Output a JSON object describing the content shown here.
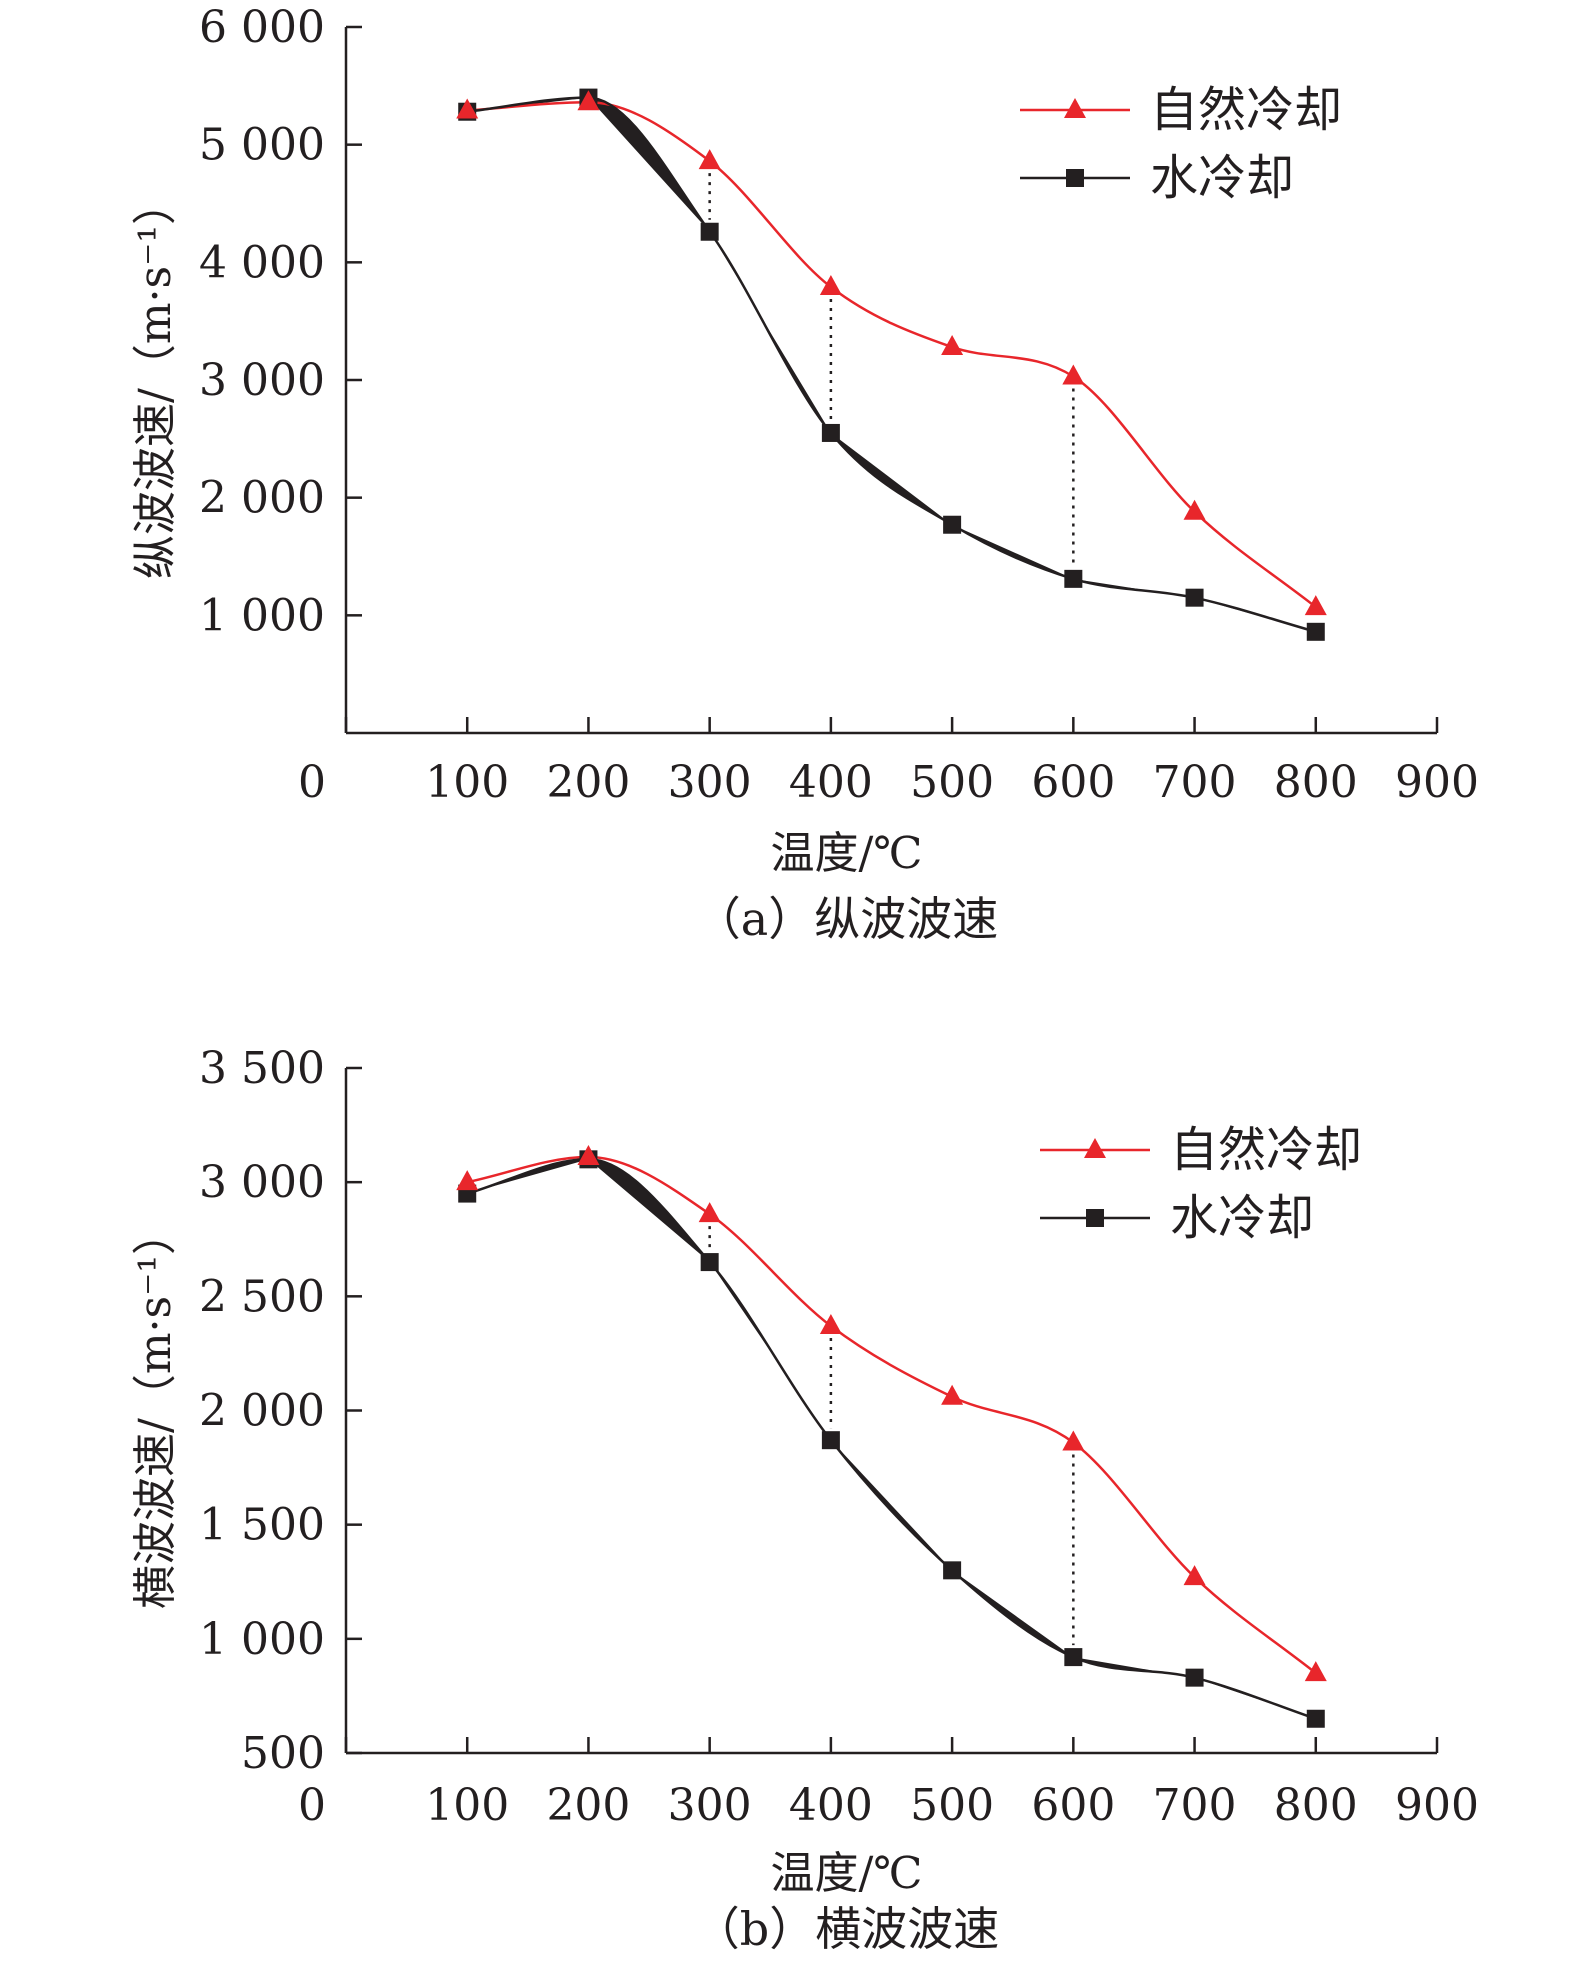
{
  "figure": {
    "colors": {
      "natural": "#e8262b",
      "water": "#231f20",
      "axis": "#231f20"
    }
  },
  "chart_data": [
    {
      "type": "line",
      "caption": "（a）纵波波速",
      "xlabel": "温度/℃",
      "ylabel": "纵波波速/（m·s⁻¹）",
      "xlim": [
        0,
        900
      ],
      "ylim": [
        0,
        6000
      ],
      "xticks": [
        0,
        100,
        200,
        300,
        400,
        500,
        600,
        700,
        800,
        900
      ],
      "xtick_labels": [
        "0",
        "100",
        "200",
        "300",
        "400",
        "500",
        "600",
        "700",
        "800",
        "900"
      ],
      "yticks": [
        1000,
        2000,
        3000,
        4000,
        5000,
        6000
      ],
      "ytick_labels": [
        "1 000",
        "2 000",
        "3 000",
        "4 000",
        "5 000",
        "6 000"
      ],
      "x": [
        100,
        200,
        300,
        400,
        500,
        600,
        700,
        800
      ],
      "legend_position": "top-right",
      "series": [
        {
          "name": "自然冷却",
          "marker": "triangle",
          "color": "#e8262b",
          "values": [
            5290,
            5360,
            4860,
            3790,
            3280,
            3030,
            1880,
            1070
          ]
        },
        {
          "name": "水冷却",
          "marker": "square",
          "color": "#231f20",
          "values": [
            5280,
            5400,
            4260,
            2550,
            1770,
            1310,
            1150,
            860
          ]
        }
      ],
      "dotted_connectors_at_x": [
        300,
        400,
        600
      ]
    },
    {
      "type": "line",
      "caption": "（b）横波波速",
      "xlabel": "温度/℃",
      "ylabel": "横波波速/（m·s⁻¹）",
      "xlim": [
        0,
        900
      ],
      "ylim": [
        500,
        3500
      ],
      "xticks": [
        0,
        100,
        200,
        300,
        400,
        500,
        600,
        700,
        800,
        900
      ],
      "xtick_labels": [
        "0",
        "100",
        "200",
        "300",
        "400",
        "500",
        "600",
        "700",
        "800",
        "900"
      ],
      "yticks": [
        500,
        1000,
        1500,
        2000,
        2500,
        3000,
        3500
      ],
      "ytick_labels": [
        "500",
        "1 000",
        "1 500",
        "2 000",
        "2 500",
        "3 000",
        "3 500"
      ],
      "x": [
        100,
        200,
        300,
        400,
        500,
        600,
        700,
        800
      ],
      "legend_position": "top-right",
      "series": [
        {
          "name": "自然冷却",
          "marker": "triangle",
          "color": "#e8262b",
          "values": [
            3000,
            3110,
            2860,
            2370,
            2060,
            1860,
            1270,
            850
          ]
        },
        {
          "name": "水冷却",
          "marker": "square",
          "color": "#231f20",
          "values": [
            2950,
            3100,
            2650,
            1870,
            1300,
            920,
            830,
            650
          ]
        }
      ],
      "dotted_connectors_at_x": [
        300,
        400,
        600
      ]
    }
  ]
}
